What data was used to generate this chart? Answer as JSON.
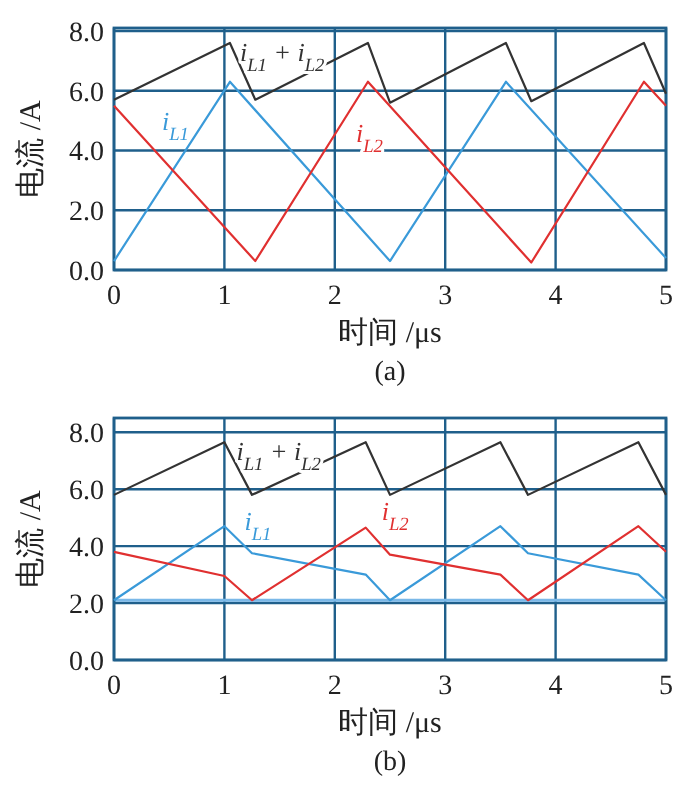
{
  "chart_data": [
    {
      "type": "line",
      "title": "(a)",
      "xlabel": "时间 /μs",
      "ylabel": "电流 /A",
      "xlim": [
        0,
        5
      ],
      "ylim": [
        0,
        8.1
      ],
      "xticks": [
        0,
        1,
        2,
        3,
        4,
        5
      ],
      "yticks": [
        {
          "value": 0,
          "label": "0.0"
        },
        {
          "value": 2,
          "label": "2.0"
        },
        {
          "value": 4,
          "label": "4.0"
        },
        {
          "value": 6,
          "label": "6.0"
        },
        {
          "value": 8,
          "label": "8.0"
        }
      ],
      "grid": true,
      "line_style": "solid",
      "series": [
        {
          "name": "i$_{L1}$ + i$_{L2}$",
          "color": "#333333",
          "x": [
            0,
            1.05,
            1.28,
            2.3,
            2.5,
            3.55,
            3.78,
            4.8,
            5
          ],
          "values": [
            5.7,
            7.6,
            5.7,
            7.6,
            5.6,
            7.6,
            5.65,
            7.6,
            5.9
          ]
        },
        {
          "name": "i$_{L1}$",
          "color": "#3a9ad9",
          "x": [
            0,
            1.05,
            2.5,
            3.55,
            5
          ],
          "values": [
            0.3,
            6.3,
            0.3,
            6.3,
            0.4
          ]
        },
        {
          "name": "i$_{L2}$",
          "color": "#e03030",
          "x": [
            0,
            1.28,
            2.3,
            3.78,
            4.8,
            5
          ],
          "values": [
            5.5,
            0.3,
            6.3,
            0.25,
            6.3,
            5.5
          ]
        }
      ]
    },
    {
      "type": "line",
      "title": "(b)",
      "xlabel": "时间 /μs",
      "ylabel": "电流 /A",
      "xlim": [
        0,
        5
      ],
      "ylim": [
        0,
        8.5
      ],
      "xticks": [
        0,
        1,
        2,
        3,
        4,
        5
      ],
      "yticks": [
        {
          "value": 0,
          "label": "0.0"
        },
        {
          "value": 2,
          "label": "2.0"
        },
        {
          "value": 4,
          "label": "4.0"
        },
        {
          "value": 6,
          "label": "6.0"
        },
        {
          "value": 8,
          "label": "8.0"
        }
      ],
      "grid": true,
      "line_style": "solid",
      "ref_lines": [
        {
          "axis": "y",
          "value": 2.1,
          "color": "#7ab8e8"
        }
      ],
      "series": [
        {
          "name": "i$_{L1}$ + i$_{L2}$",
          "color": "#333333",
          "x": [
            0,
            1.0,
            1.25,
            2.28,
            2.5,
            3.5,
            3.75,
            4.75,
            5
          ],
          "values": [
            5.8,
            7.65,
            5.8,
            7.65,
            5.8,
            7.65,
            5.8,
            7.65,
            5.8
          ]
        },
        {
          "name": "i$_{L1}$",
          "color": "#3a9ad9",
          "x": [
            0,
            1.0,
            1.25,
            2.28,
            2.5,
            3.5,
            3.75,
            4.75,
            5
          ],
          "values": [
            2.1,
            4.7,
            3.75,
            3.0,
            2.1,
            4.7,
            3.75,
            3.0,
            2.1
          ]
        },
        {
          "name": "i$_{L2}$",
          "color": "#e03030",
          "x": [
            0,
            1.0,
            1.25,
            2.28,
            2.5,
            3.5,
            3.75,
            4.75,
            5
          ],
          "values": [
            3.8,
            2.95,
            2.1,
            4.65,
            3.7,
            3.0,
            2.1,
            4.7,
            3.8
          ]
        }
      ]
    }
  ]
}
